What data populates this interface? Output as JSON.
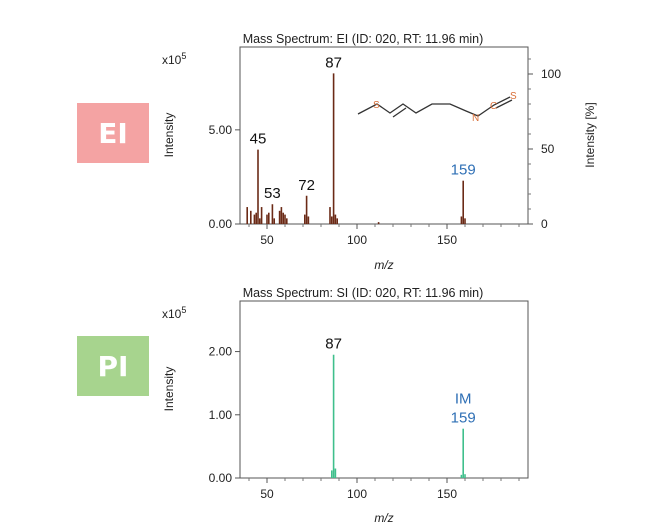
{
  "labels": {
    "ei": "EI",
    "pi": "PI"
  },
  "colors": {
    "ei_peaks": "#6b2a16",
    "pi_peaks": "#3fbf8c",
    "label_black": "#111111",
    "label_blue": "#2e6fb5",
    "molecule": "#d9703a"
  },
  "molecule_atoms": {
    "s1": "S",
    "n": "N",
    "c": "C",
    "s2": "S"
  },
  "chart_data": [
    {
      "type": "bar",
      "title": "Mass Spectrum: EI (ID: 020, RT: 11.96 min)",
      "xlabel": "m/z",
      "ylabel": "Intensity",
      "y2label": "Intensity [%]",
      "exponent_base": "x10",
      "exponent_power": "5",
      "xlim": [
        35,
        195
      ],
      "ylim": [
        0,
        9.4
      ],
      "x_ticks": [
        50,
        100,
        150
      ],
      "y_ticks": [
        0,
        5
      ],
      "y_tick_labels": [
        "0.00",
        "5.00"
      ],
      "y2_lim": [
        0,
        118
      ],
      "y2_ticks": [
        0,
        50,
        100
      ],
      "y2_tick_labels": [
        "0",
        "50",
        "100"
      ],
      "peaks": {
        "mz": [
          39,
          41,
          43,
          44,
          45,
          46,
          47,
          50,
          51,
          53,
          54,
          57,
          58,
          59,
          60,
          61,
          71,
          72,
          73,
          85,
          86,
          87,
          88,
          89,
          112,
          158,
          159,
          160
        ],
        "intensity": [
          0.9,
          0.7,
          0.5,
          0.6,
          3.95,
          0.3,
          0.9,
          0.5,
          0.6,
          1.05,
          0.3,
          0.7,
          0.9,
          0.6,
          0.5,
          0.3,
          0.5,
          1.5,
          0.4,
          0.9,
          0.4,
          8.0,
          0.5,
          0.3,
          0.1,
          0.4,
          2.3,
          0.3
        ]
      },
      "annotations": [
        {
          "mz": 45,
          "label": "45",
          "style": "black"
        },
        {
          "mz": 53,
          "label": "53",
          "style": "black"
        },
        {
          "mz": 72,
          "label": "72",
          "style": "black"
        },
        {
          "mz": 87,
          "label": "87",
          "style": "black"
        },
        {
          "mz": 159,
          "label": "159",
          "style": "blue"
        }
      ]
    },
    {
      "type": "bar",
      "title": "Mass Spectrum: SI (ID: 020, RT: 11.96 min)",
      "xlabel": "m/z",
      "ylabel": "Intensity",
      "exponent_base": "x10",
      "exponent_power": "5",
      "xlim": [
        35,
        195
      ],
      "ylim": [
        0,
        2.8
      ],
      "x_ticks": [
        50,
        100,
        150
      ],
      "y_ticks": [
        0,
        1,
        2
      ],
      "y_tick_labels": [
        "0.00",
        "1.00",
        "2.00"
      ],
      "peaks": {
        "mz": [
          86,
          87,
          88,
          158,
          159,
          160
        ],
        "intensity": [
          0.12,
          1.95,
          0.15,
          0.05,
          0.78,
          0.06
        ]
      },
      "annotations": [
        {
          "mz": 87,
          "label": "87",
          "style": "black"
        },
        {
          "mz": 159,
          "label": "159",
          "sublabel": "IM",
          "style": "blue"
        }
      ]
    }
  ]
}
